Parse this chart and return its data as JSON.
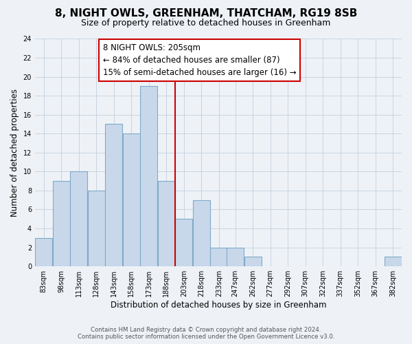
{
  "title": "8, NIGHT OWLS, GREENHAM, THATCHAM, RG19 8SB",
  "subtitle": "Size of property relative to detached houses in Greenham",
  "xlabel": "Distribution of detached houses by size in Greenham",
  "ylabel": "Number of detached properties",
  "bin_labels": [
    "83sqm",
    "98sqm",
    "113sqm",
    "128sqm",
    "143sqm",
    "158sqm",
    "173sqm",
    "188sqm",
    "203sqm",
    "218sqm",
    "233sqm",
    "247sqm",
    "262sqm",
    "277sqm",
    "292sqm",
    "307sqm",
    "322sqm",
    "337sqm",
    "352sqm",
    "367sqm",
    "382sqm"
  ],
  "bin_edges": [
    83,
    98,
    113,
    128,
    143,
    158,
    173,
    188,
    203,
    218,
    233,
    247,
    262,
    277,
    292,
    307,
    322,
    337,
    352,
    367,
    382
  ],
  "bar_heights": [
    3,
    9,
    10,
    8,
    15,
    14,
    19,
    9,
    5,
    7,
    2,
    2,
    1,
    0,
    0,
    0,
    0,
    0,
    0,
    0,
    1
  ],
  "bar_color": "#c8d8ea",
  "bar_edge_color": "#7faac8",
  "property_line_x": 203,
  "property_line_color": "#cc0000",
  "annotation_line1": "8 NIGHT OWLS: 205sqm",
  "annotation_line2": "← 84% of detached houses are smaller (87)",
  "annotation_line3": "15% of semi-detached houses are larger (16) →",
  "annotation_box_edge": "#cc0000",
  "annotation_box_face": "#ffffff",
  "ylim": [
    0,
    24
  ],
  "yticks": [
    0,
    2,
    4,
    6,
    8,
    10,
    12,
    14,
    16,
    18,
    20,
    22,
    24
  ],
  "grid_color": "#c8d4e0",
  "background_color": "#eef2f7",
  "title_fontsize": 11,
  "subtitle_fontsize": 9,
  "footer_line1": "Contains HM Land Registry data © Crown copyright and database right 2024.",
  "footer_line2": "Contains public sector information licensed under the Open Government Licence v3.0."
}
